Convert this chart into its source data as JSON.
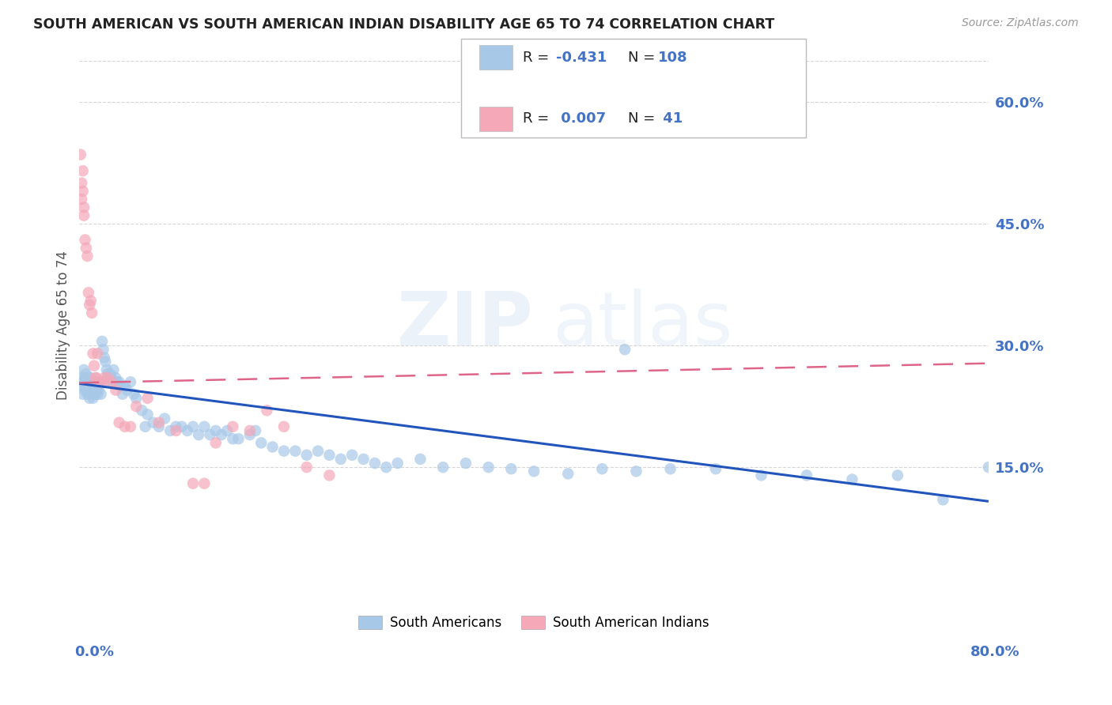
{
  "title": "SOUTH AMERICAN VS SOUTH AMERICAN INDIAN DISABILITY AGE 65 TO 74 CORRELATION CHART",
  "source": "Source: ZipAtlas.com",
  "ylabel": "Disability Age 65 to 74",
  "xlim": [
    0,
    0.8
  ],
  "ylim": [
    0,
    0.65
  ],
  "yticks": [
    0.15,
    0.3,
    0.45,
    0.6
  ],
  "ytick_labels": [
    "15.0%",
    "30.0%",
    "45.0%",
    "60.0%"
  ],
  "blue_color": "#a8c8e8",
  "pink_color": "#f4a8b8",
  "blue_line_color": "#2255bb",
  "pink_line_color": "#dd6688",
  "axis_label_color": "#4472c4",
  "title_color": "#222222",
  "grid_color": "#cccccc",
  "bg_color": "#ffffff",
  "blue_trend_x0": 0.0,
  "blue_trend_y0": 0.253,
  "blue_trend_x1": 0.8,
  "blue_trend_y1": 0.108,
  "pink_trend_x0": 0.0,
  "pink_trend_y0": 0.254,
  "pink_trend_x1": 0.8,
  "pink_trend_y1": 0.278,
  "blue_scatter_x": [
    0.002,
    0.003,
    0.003,
    0.004,
    0.004,
    0.005,
    0.005,
    0.005,
    0.006,
    0.006,
    0.007,
    0.007,
    0.008,
    0.008,
    0.008,
    0.009,
    0.009,
    0.01,
    0.01,
    0.01,
    0.011,
    0.011,
    0.012,
    0.012,
    0.013,
    0.013,
    0.014,
    0.014,
    0.015,
    0.015,
    0.016,
    0.016,
    0.017,
    0.018,
    0.019,
    0.02,
    0.021,
    0.022,
    0.023,
    0.024,
    0.025,
    0.026,
    0.027,
    0.028,
    0.03,
    0.03,
    0.032,
    0.033,
    0.035,
    0.036,
    0.038,
    0.04,
    0.042,
    0.045,
    0.048,
    0.05,
    0.055,
    0.058,
    0.06,
    0.065,
    0.07,
    0.075,
    0.08,
    0.085,
    0.09,
    0.095,
    0.1,
    0.105,
    0.11,
    0.115,
    0.12,
    0.125,
    0.13,
    0.135,
    0.14,
    0.15,
    0.155,
    0.16,
    0.17,
    0.18,
    0.19,
    0.2,
    0.21,
    0.22,
    0.23,
    0.24,
    0.25,
    0.26,
    0.27,
    0.28,
    0.3,
    0.32,
    0.34,
    0.36,
    0.38,
    0.4,
    0.43,
    0.46,
    0.49,
    0.52,
    0.56,
    0.6,
    0.64,
    0.68,
    0.72,
    0.76,
    0.8,
    0.48
  ],
  "blue_scatter_y": [
    0.26,
    0.255,
    0.24,
    0.27,
    0.25,
    0.26,
    0.255,
    0.245,
    0.25,
    0.265,
    0.255,
    0.24,
    0.25,
    0.245,
    0.255,
    0.26,
    0.235,
    0.26,
    0.25,
    0.245,
    0.255,
    0.25,
    0.24,
    0.235,
    0.25,
    0.245,
    0.255,
    0.24,
    0.255,
    0.245,
    0.25,
    0.24,
    0.245,
    0.255,
    0.24,
    0.305,
    0.295,
    0.285,
    0.28,
    0.27,
    0.265,
    0.255,
    0.265,
    0.26,
    0.27,
    0.255,
    0.26,
    0.255,
    0.255,
    0.25,
    0.24,
    0.25,
    0.245,
    0.255,
    0.24,
    0.235,
    0.22,
    0.2,
    0.215,
    0.205,
    0.2,
    0.21,
    0.195,
    0.2,
    0.2,
    0.195,
    0.2,
    0.19,
    0.2,
    0.19,
    0.195,
    0.19,
    0.195,
    0.185,
    0.185,
    0.19,
    0.195,
    0.18,
    0.175,
    0.17,
    0.17,
    0.165,
    0.17,
    0.165,
    0.16,
    0.165,
    0.16,
    0.155,
    0.15,
    0.155,
    0.16,
    0.15,
    0.155,
    0.15,
    0.148,
    0.145,
    0.142,
    0.148,
    0.145,
    0.148,
    0.148,
    0.14,
    0.14,
    0.135,
    0.14,
    0.11,
    0.15,
    0.295
  ],
  "pink_scatter_x": [
    0.001,
    0.002,
    0.002,
    0.003,
    0.003,
    0.004,
    0.004,
    0.005,
    0.006,
    0.007,
    0.008,
    0.009,
    0.01,
    0.011,
    0.012,
    0.013,
    0.014,
    0.015,
    0.016,
    0.018,
    0.02,
    0.022,
    0.025,
    0.028,
    0.032,
    0.035,
    0.04,
    0.045,
    0.05,
    0.06,
    0.07,
    0.085,
    0.1,
    0.11,
    0.12,
    0.135,
    0.15,
    0.165,
    0.18,
    0.2,
    0.22
  ],
  "pink_scatter_y": [
    0.535,
    0.5,
    0.48,
    0.515,
    0.49,
    0.47,
    0.46,
    0.43,
    0.42,
    0.41,
    0.365,
    0.35,
    0.355,
    0.34,
    0.29,
    0.275,
    0.26,
    0.26,
    0.29,
    0.255,
    0.255,
    0.26,
    0.26,
    0.255,
    0.245,
    0.205,
    0.2,
    0.2,
    0.225,
    0.235,
    0.205,
    0.195,
    0.13,
    0.13,
    0.18,
    0.2,
    0.195,
    0.22,
    0.2,
    0.15,
    0.14
  ]
}
